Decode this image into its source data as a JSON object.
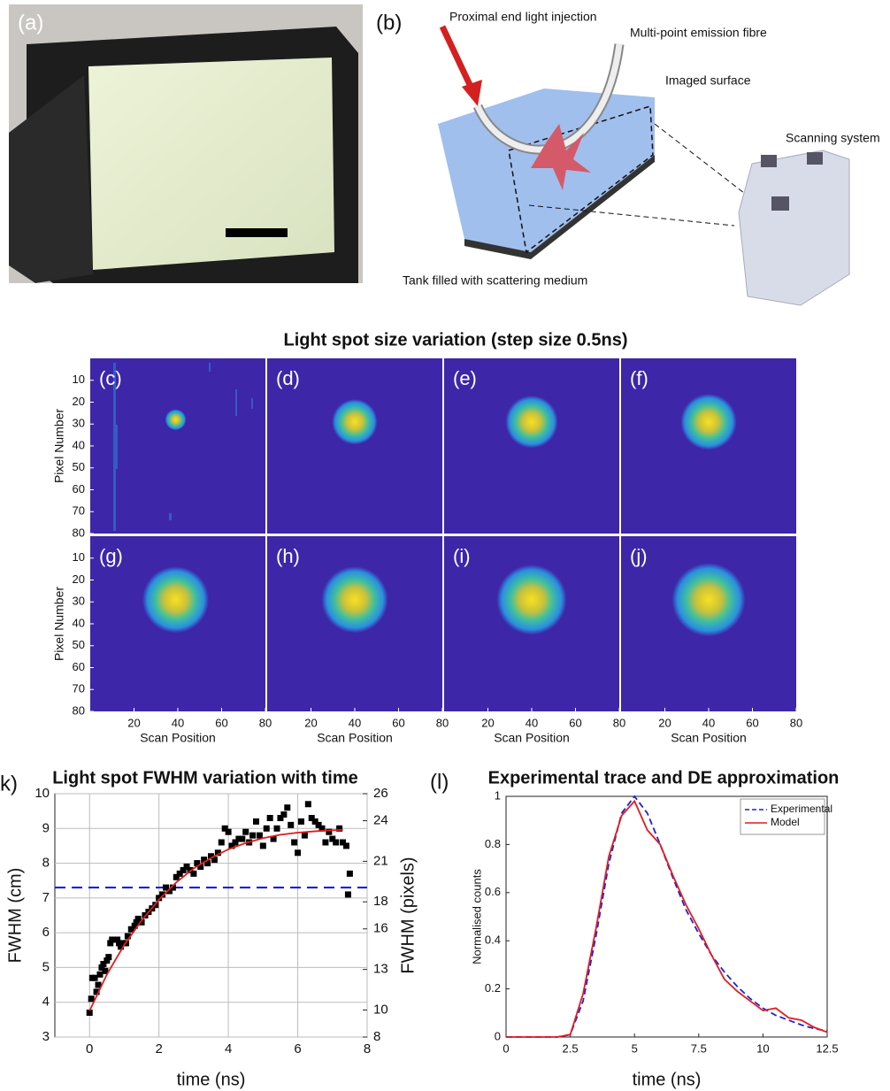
{
  "panel_a": {
    "label": "(a)"
  },
  "panel_b": {
    "label": "(b)",
    "annotations": [
      "Proximal end light injection",
      "Multi-point emission fibre",
      "Imaged surface",
      "Scanning system",
      "Tank filled with scattering medium"
    ]
  },
  "heatmaps": {
    "title": "Light spot size variation (step size 0.5ns)",
    "xlabel": "Scan Position",
    "ylabel": "Pixel Number",
    "xlim": [
      0,
      80
    ],
    "ylim": [
      0,
      80
    ],
    "y_reversed": true,
    "xticks": [
      20,
      40,
      60,
      80
    ],
    "yticks": [
      10,
      20,
      30,
      40,
      50,
      60,
      70,
      80
    ],
    "panels": [
      {
        "label": "(c)",
        "spot": {
          "x": 39,
          "y": 28,
          "d": 6
        }
      },
      {
        "label": "(d)",
        "spot": {
          "x": 40,
          "y": 29,
          "d": 13
        }
      },
      {
        "label": "(e)",
        "spot": {
          "x": 40,
          "y": 29,
          "d": 15
        }
      },
      {
        "label": "(f)",
        "spot": {
          "x": 40,
          "y": 29,
          "d": 16
        }
      },
      {
        "label": "(g)",
        "spot": {
          "x": 39,
          "y": 29,
          "d": 19
        }
      },
      {
        "label": "(h)",
        "spot": {
          "x": 40,
          "y": 29,
          "d": 19
        }
      },
      {
        "label": "(i)",
        "spot": {
          "x": 40,
          "y": 29,
          "d": 20
        }
      },
      {
        "label": "(j)",
        "spot": {
          "x": 40,
          "y": 29,
          "d": 21
        }
      }
    ]
  },
  "chart_data": [
    {
      "type": "scatter",
      "panel_label": "k)",
      "title": "Light spot FWHM variation with time",
      "xlabel": "time (ns)",
      "ylabel": "FWHM (cm)",
      "y2label": "FWHM (pixels)",
      "xlim": [
        -1,
        8
      ],
      "xticks": [
        0,
        2,
        4,
        6,
        8
      ],
      "ylim": [
        3,
        10
      ],
      "yticks": [
        3,
        4,
        5,
        6,
        7,
        8,
        9,
        10
      ],
      "y2lim": [
        8,
        26
      ],
      "y2ticks": [
        8,
        10,
        13,
        16,
        18,
        21,
        24,
        26
      ],
      "grid": true,
      "series": [
        {
          "type": "scatter",
          "color": "#000000",
          "x": [
            0,
            0.05,
            0.08,
            0.15,
            0.2,
            0.25,
            0.3,
            0.35,
            0.4,
            0.45,
            0.5,
            0.55,
            0.6,
            0.65,
            0.7,
            0.8,
            0.85,
            0.9,
            1.0,
            1.05,
            1.1,
            1.2,
            1.3,
            1.35,
            1.4,
            1.5,
            1.6,
            1.7,
            1.8,
            1.9,
            2.0,
            2.1,
            2.2,
            2.3,
            2.4,
            2.5,
            2.6,
            2.7,
            2.8,
            2.9,
            3.0,
            3.1,
            3.2,
            3.3,
            3.4,
            3.5,
            3.6,
            3.7,
            3.8,
            3.9,
            4.0,
            4.1,
            4.2,
            4.3,
            4.4,
            4.5,
            4.6,
            4.7,
            4.8,
            4.9,
            5.0,
            5.1,
            5.2,
            5.3,
            5.4,
            5.5,
            5.6,
            5.7,
            5.8,
            5.9,
            6.0,
            6.1,
            6.2,
            6.3,
            6.4,
            6.5,
            6.6,
            6.7,
            6.8,
            6.9,
            7.0,
            7.1,
            7.2,
            7.3,
            7.4,
            7.45,
            7.5
          ],
          "values": [
            3.7,
            4.1,
            4.7,
            4.7,
            4.3,
            4.5,
            4.8,
            5.0,
            5.1,
            4.9,
            5.2,
            5.3,
            5.7,
            5.8,
            5.8,
            5.8,
            5.7,
            5.6,
            5.7,
            5.7,
            5.9,
            6.1,
            6.2,
            6.3,
            6.4,
            6.3,
            6.5,
            6.6,
            6.7,
            6.8,
            7.0,
            7.1,
            7.3,
            7.2,
            7.3,
            7.6,
            7.7,
            7.8,
            7.9,
            7.8,
            7.7,
            8.0,
            7.9,
            8.1,
            8.0,
            8.2,
            8.1,
            8.3,
            8.6,
            9.0,
            8.9,
            8.5,
            8.6,
            8.7,
            8.7,
            8.9,
            8.6,
            8.8,
            9.2,
            8.8,
            8.5,
            9.0,
            9.3,
            8.7,
            9.0,
            9.3,
            9.4,
            9.6,
            9.1,
            8.6,
            8.3,
            9.2,
            8.8,
            9.7,
            9.3,
            9.2,
            9.1,
            9.0,
            8.6,
            8.9,
            8.7,
            8.6,
            9.0,
            8.6,
            8.5,
            7.1,
            7.7
          ]
        },
        {
          "type": "line",
          "color": "#e41a1c",
          "x": [
            0,
            0.5,
            1,
            1.5,
            2,
            2.5,
            3,
            3.5,
            4,
            4.5,
            5,
            5.5,
            6,
            6.5,
            7,
            7.3
          ],
          "values": [
            3.75,
            4.8,
            5.65,
            6.35,
            6.95,
            7.45,
            7.85,
            8.15,
            8.4,
            8.58,
            8.72,
            8.82,
            8.88,
            8.92,
            8.95,
            8.96
          ]
        }
      ],
      "hlines": [
        {
          "value": 7.3,
          "color": "#1f1fdd",
          "dashed": true
        }
      ]
    },
    {
      "type": "line",
      "panel_label": "(l)",
      "title": "Experimental trace and DE approximation",
      "xlabel": "time (ns)",
      "ylabel": "Normalised counts",
      "xlim": [
        0,
        12.5
      ],
      "xticks": [
        0,
        2.5,
        5,
        7.5,
        10,
        12.5
      ],
      "ylim": [
        0,
        1
      ],
      "yticks": [
        0,
        0.2,
        0.4,
        0.6,
        0.8,
        1
      ],
      "grid": false,
      "legend": "northeast",
      "x": [
        0,
        0.5,
        1,
        1.5,
        2,
        2.5,
        3,
        3.5,
        4,
        4.5,
        5,
        5.5,
        6,
        6.5,
        7,
        7.5,
        8,
        8.5,
        9,
        9.5,
        10,
        10.5,
        11,
        11.5,
        12,
        12.5
      ],
      "series": [
        {
          "name": "Experimental",
          "color": "#1f1fdd",
          "dashed": true,
          "values": [
            0,
            0,
            0,
            0,
            0,
            0.01,
            0.15,
            0.42,
            0.72,
            0.93,
            1.0,
            0.93,
            0.8,
            0.66,
            0.53,
            0.43,
            0.34,
            0.27,
            0.21,
            0.16,
            0.12,
            0.09,
            0.07,
            0.05,
            0.035,
            0.025
          ]
        },
        {
          "name": "Model",
          "color": "#e41a1c",
          "dashed": false,
          "values": [
            0,
            0,
            0,
            0,
            0,
            0.01,
            0.18,
            0.45,
            0.75,
            0.92,
            0.98,
            0.86,
            0.8,
            0.67,
            0.55,
            0.45,
            0.34,
            0.24,
            0.19,
            0.15,
            0.11,
            0.12,
            0.08,
            0.07,
            0.04,
            0.02
          ]
        }
      ]
    }
  ]
}
